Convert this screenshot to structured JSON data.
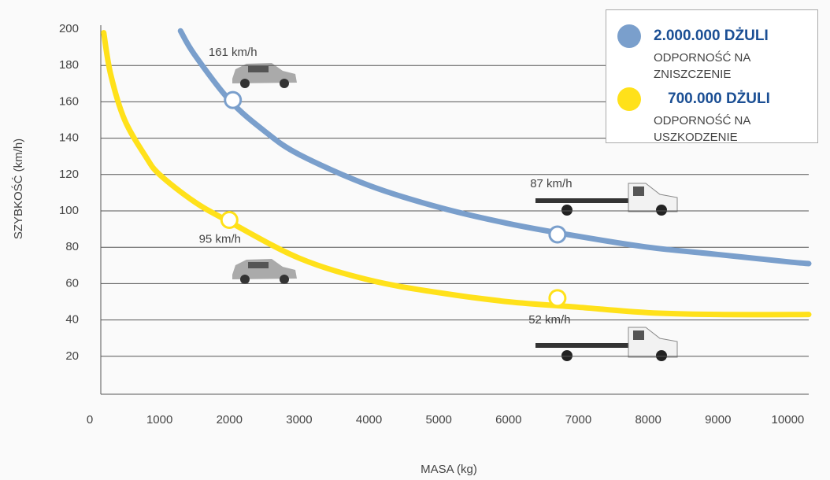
{
  "chart_data": {
    "type": "line",
    "xlabel": "MASA (kg)",
    "ylabel": "SZYBKOŚĆ (km/h)",
    "xlim": [
      0,
      10300
    ],
    "xticks": [
      0,
      1000,
      2000,
      3000,
      4000,
      5000,
      6000,
      7000,
      8000,
      9000,
      10000
    ],
    "ylim": [
      0,
      200
    ],
    "yticks": [
      20,
      40,
      60,
      80,
      100,
      120,
      140,
      160,
      180,
      200
    ],
    "grid": true,
    "series": [
      {
        "name": "2.000.000 DŻULI",
        "description": "ODPORNOŚĆ NA ZNISZCZENIE",
        "color": "#7a9fcc",
        "x": [
          1300,
          1500,
          2000,
          2500,
          3000,
          4000,
          5000,
          6000,
          7000,
          8000,
          9000,
          10000,
          10300
        ],
        "values": [
          199,
          186,
          161,
          144,
          131,
          114,
          102,
          93,
          86,
          80,
          76,
          72,
          71
        ],
        "highlights": [
          {
            "x": 2050,
            "y": 161,
            "label": "161 km/h"
          },
          {
            "x": 6700,
            "y": 87,
            "label": "87 km/h"
          }
        ]
      },
      {
        "name": "700.000 DŻULI",
        "description": "ODPORNOŚĆ NA USZKODZENIE",
        "color": "#ffe11a",
        "x": [
          200,
          300,
          500,
          800,
          1000,
          1500,
          2000,
          3000,
          4000,
          5000,
          6000,
          7000,
          8000,
          9000,
          10300
        ],
        "values": [
          198,
          175,
          150,
          130,
          120,
          105,
          94,
          74,
          62,
          55,
          50,
          47,
          44,
          43,
          43
        ],
        "highlights": [
          {
            "x": 2000,
            "y": 95,
            "label": "95 km/h"
          },
          {
            "x": 6700,
            "y": 52,
            "label": "52 km/h"
          }
        ]
      }
    ]
  }
}
